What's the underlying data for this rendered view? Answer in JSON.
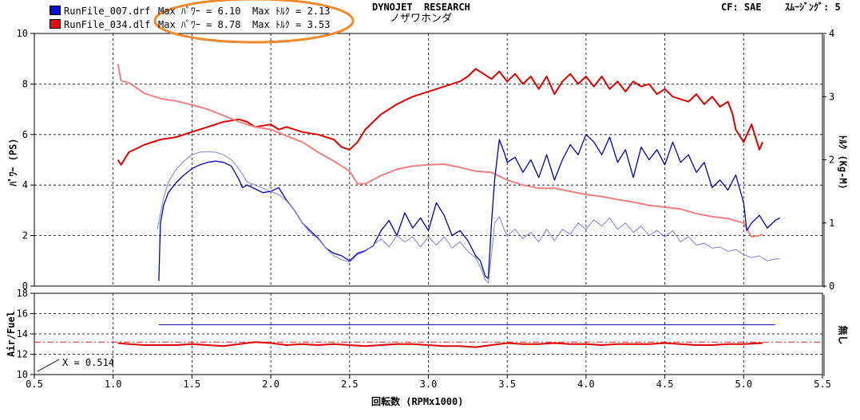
{
  "header": {
    "title": "DYNOJET  RESEARCH",
    "subtitle": "ノザワホンダ",
    "cf": "CF: SAE",
    "smoothing": "ｽﾑｰｼﾞﾝｸﾞ: 5"
  },
  "legend": [
    {
      "file": "RunFile_007.drf",
      "power_label": "Max ﾊﾟﾜｰ = 6.10",
      "torque_label": "Max ﾄﾙｸ = 2.13",
      "color": "#1010c8"
    },
    {
      "file": "RunFile_034.dlf",
      "power_label": "Max ﾊﾟﾜｰ = 8.78",
      "torque_label": "Max ﾄﾙｸ = 3.53",
      "color": "#e01010"
    }
  ],
  "annotation": {
    "highlight_color": "#f08a2c"
  },
  "cursor_readout": "X = 0.514",
  "chart_data": [
    {
      "type": "line",
      "name": "main",
      "xlabel": "回転数 (RPMx1000)",
      "ylabel_left": "ﾊﾟﾜｰ (PS)",
      "ylabel_right": "ﾄﾙｸ (Kg-M)",
      "xlim": [
        0.5,
        5.5
      ],
      "ylim_left": [
        0,
        10
      ],
      "ylim_right": [
        0,
        4
      ],
      "x_ticks": [
        "0.5",
        "1.0",
        "1.5",
        "2.0",
        "2.5",
        "3.0",
        "3.5",
        "4.0",
        "4.5",
        "5.0",
        "5.5"
      ],
      "y_ticks_left": [
        "0",
        "2",
        "4",
        "6",
        "8",
        "10"
      ],
      "y_ticks_right": [
        "0",
        "1",
        "2",
        "3",
        "4"
      ],
      "grid": true,
      "series": [
        {
          "file": "RunFile_034.dlf",
          "quantity": "power",
          "axis": "left",
          "color": "#dd0000",
          "width": 2,
          "x": [
            1.03,
            1.05,
            1.1,
            1.2,
            1.3,
            1.4,
            1.5,
            1.6,
            1.7,
            1.8,
            1.85,
            1.9,
            2.0,
            2.05,
            2.1,
            2.2,
            2.3,
            2.4,
            2.45,
            2.5,
            2.55,
            2.6,
            2.7,
            2.8,
            2.9,
            3.0,
            3.1,
            3.2,
            3.25,
            3.3,
            3.35,
            3.4,
            3.45,
            3.5,
            3.55,
            3.6,
            3.65,
            3.7,
            3.75,
            3.8,
            3.85,
            3.9,
            3.95,
            4.0,
            4.05,
            4.1,
            4.15,
            4.2,
            4.25,
            4.3,
            4.35,
            4.4,
            4.45,
            4.5,
            4.55,
            4.6,
            4.65,
            4.7,
            4.75,
            4.8,
            4.85,
            4.9,
            4.93,
            4.95,
            5.0,
            5.05,
            5.1,
            5.12
          ],
          "y": [
            5.0,
            4.8,
            5.3,
            5.6,
            5.8,
            5.9,
            6.1,
            6.3,
            6.5,
            6.6,
            6.5,
            6.3,
            6.4,
            6.2,
            6.3,
            6.1,
            6.0,
            5.8,
            5.5,
            5.4,
            5.7,
            6.2,
            6.8,
            7.2,
            7.5,
            7.7,
            7.9,
            8.1,
            8.3,
            8.6,
            8.4,
            8.2,
            8.5,
            8.1,
            8.4,
            8.0,
            8.3,
            7.8,
            8.3,
            7.6,
            8.1,
            8.4,
            8.0,
            8.3,
            7.9,
            8.3,
            7.8,
            8.1,
            7.7,
            8.1,
            7.9,
            8.0,
            7.6,
            7.8,
            7.5,
            7.4,
            7.3,
            7.6,
            7.2,
            7.5,
            7.1,
            7.3,
            6.8,
            6.2,
            5.7,
            6.4,
            5.4,
            5.7
          ]
        },
        {
          "file": "RunFile_034.dlf",
          "quantity": "torque",
          "axis": "right",
          "color": "#f08080",
          "width": 2,
          "x": [
            1.03,
            1.05,
            1.1,
            1.2,
            1.3,
            1.4,
            1.5,
            1.6,
            1.7,
            1.8,
            1.9,
            2.0,
            2.1,
            2.2,
            2.3,
            2.4,
            2.5,
            2.55,
            2.6,
            2.7,
            2.8,
            2.9,
            3.0,
            3.1,
            3.2,
            3.3,
            3.4,
            3.5,
            3.6,
            3.7,
            3.8,
            3.9,
            4.0,
            4.1,
            4.2,
            4.3,
            4.4,
            4.5,
            4.6,
            4.7,
            4.8,
            4.9,
            5.0,
            5.05,
            5.1,
            5.12
          ],
          "y": [
            3.52,
            3.25,
            3.22,
            3.05,
            2.97,
            2.93,
            2.87,
            2.8,
            2.7,
            2.6,
            2.52,
            2.48,
            2.38,
            2.28,
            2.12,
            1.98,
            1.82,
            1.62,
            1.62,
            1.75,
            1.85,
            1.9,
            1.92,
            1.93,
            1.88,
            1.82,
            1.8,
            1.68,
            1.6,
            1.55,
            1.55,
            1.5,
            1.45,
            1.42,
            1.37,
            1.33,
            1.28,
            1.25,
            1.22,
            1.15,
            1.1,
            1.07,
            1.0,
            0.78,
            0.8,
            0.82
          ]
        },
        {
          "file": "RunFile_007.drf",
          "quantity": "power",
          "axis": "left",
          "color": "#0000b0",
          "width": 1.3,
          "x": [
            1.29,
            1.3,
            1.32,
            1.35,
            1.4,
            1.45,
            1.5,
            1.55,
            1.6,
            1.65,
            1.7,
            1.75,
            1.8,
            1.82,
            1.85,
            1.9,
            1.95,
            2.0,
            2.05,
            2.1,
            2.15,
            2.2,
            2.25,
            2.3,
            2.35,
            2.4,
            2.45,
            2.5,
            2.55,
            2.6,
            2.65,
            2.7,
            2.75,
            2.8,
            2.85,
            2.9,
            2.95,
            3.0,
            3.05,
            3.1,
            3.15,
            3.2,
            3.25,
            3.3,
            3.33,
            3.36,
            3.38,
            3.4,
            3.42,
            3.45,
            3.48,
            3.5,
            3.55,
            3.6,
            3.65,
            3.7,
            3.75,
            3.8,
            3.85,
            3.9,
            3.95,
            4.0,
            4.05,
            4.1,
            4.15,
            4.2,
            4.25,
            4.3,
            4.35,
            4.4,
            4.45,
            4.5,
            4.55,
            4.6,
            4.65,
            4.7,
            4.75,
            4.8,
            4.85,
            4.9,
            4.95,
            5.0,
            5.02,
            5.05,
            5.1,
            5.15,
            5.2,
            5.23
          ],
          "y": [
            0.2,
            2.5,
            3.2,
            3.7,
            4.1,
            4.4,
            4.65,
            4.8,
            4.9,
            4.95,
            4.9,
            4.75,
            4.2,
            3.9,
            4.0,
            3.85,
            3.7,
            3.75,
            3.9,
            3.4,
            3.0,
            2.5,
            2.2,
            1.9,
            1.5,
            1.3,
            1.2,
            1.0,
            1.3,
            1.4,
            1.6,
            2.2,
            2.6,
            2.0,
            2.9,
            2.3,
            2.7,
            2.2,
            3.3,
            2.8,
            2.0,
            2.2,
            1.8,
            1.2,
            1.0,
            0.4,
            0.3,
            2.5,
            4.2,
            5.8,
            5.3,
            4.9,
            5.1,
            4.5,
            5.0,
            4.3,
            5.2,
            4.2,
            5.0,
            5.6,
            5.2,
            6.0,
            5.7,
            5.2,
            5.9,
            4.9,
            5.4,
            4.3,
            5.5,
            5.0,
            5.4,
            4.8,
            5.7,
            4.9,
            5.2,
            4.5,
            4.9,
            3.9,
            4.2,
            3.8,
            4.4,
            3.3,
            2.2,
            2.5,
            2.8,
            2.3,
            2.6,
            2.7
          ]
        },
        {
          "file": "RunFile_007.drf",
          "quantity": "torque",
          "axis": "right",
          "color": "#8080e0",
          "width": 1,
          "x": [
            1.28,
            1.3,
            1.32,
            1.35,
            1.4,
            1.45,
            1.5,
            1.55,
            1.6,
            1.65,
            1.7,
            1.75,
            1.8,
            1.85,
            1.9,
            1.95,
            2.0,
            2.05,
            2.1,
            2.15,
            2.2,
            2.25,
            2.3,
            2.35,
            2.4,
            2.45,
            2.5,
            2.55,
            2.6,
            2.65,
            2.7,
            2.75,
            2.8,
            2.85,
            2.9,
            2.95,
            3.0,
            3.05,
            3.1,
            3.15,
            3.2,
            3.25,
            3.3,
            3.33,
            3.36,
            3.38,
            3.4,
            3.42,
            3.45,
            3.48,
            3.5,
            3.55,
            3.6,
            3.65,
            3.7,
            3.75,
            3.8,
            3.85,
            3.9,
            3.95,
            4.0,
            4.05,
            4.1,
            4.15,
            4.2,
            4.25,
            4.3,
            4.35,
            4.4,
            4.45,
            4.5,
            4.55,
            4.6,
            4.65,
            4.7,
            4.75,
            4.8,
            4.85,
            4.9,
            4.95,
            5.0,
            5.05,
            5.1,
            5.15,
            5.2,
            5.23
          ],
          "y": [
            0.9,
            1.15,
            1.4,
            1.65,
            1.85,
            1.98,
            2.08,
            2.12,
            2.13,
            2.12,
            2.08,
            2.0,
            1.85,
            1.65,
            1.6,
            1.55,
            1.5,
            1.45,
            1.35,
            1.2,
            1.0,
            0.85,
            0.75,
            0.6,
            0.48,
            0.42,
            0.38,
            0.5,
            0.55,
            0.65,
            0.75,
            0.62,
            0.8,
            0.7,
            0.78,
            0.62,
            0.78,
            0.65,
            0.78,
            0.6,
            0.7,
            0.55,
            0.45,
            0.3,
            0.1,
            0.05,
            0.5,
            1.0,
            1.1,
            0.9,
            0.8,
            0.9,
            0.75,
            0.85,
            0.7,
            0.9,
            0.72,
            0.9,
            0.82,
            1.0,
            0.9,
            1.05,
            0.95,
            1.08,
            0.9,
            1.0,
            0.85,
            0.95,
            0.8,
            0.88,
            0.78,
            0.88,
            0.7,
            0.78,
            0.65,
            0.68,
            0.6,
            0.62,
            0.55,
            0.58,
            0.5,
            0.45,
            0.48,
            0.4,
            0.43,
            0.43
          ]
        }
      ]
    },
    {
      "type": "line",
      "name": "air_fuel",
      "ylabel_left": "Air/Fuel",
      "ylabel_right": "無し",
      "xlim": [
        0.5,
        5.5
      ],
      "ylim_left": [
        10,
        18
      ],
      "y_ticks_left": [
        "10",
        "12",
        "14",
        "16",
        "18"
      ],
      "reference_line": {
        "y": 13.2,
        "color": "#e02020",
        "style": "dash-dot"
      },
      "series": [
        {
          "file": "RunFile_007.drf",
          "color": "#1010b0",
          "width": 1,
          "x": [
            1.29,
            4.95,
            5.0,
            5.2
          ],
          "y": [
            14.9,
            14.9,
            14.9,
            14.9
          ]
        },
        {
          "file": "RunFile_034.dlf",
          "color": "#dd0000",
          "width": 2,
          "x": [
            1.03,
            1.1,
            1.2,
            1.3,
            1.4,
            1.5,
            1.6,
            1.7,
            1.8,
            1.9,
            2.0,
            2.1,
            2.2,
            2.3,
            2.4,
            2.5,
            2.6,
            2.7,
            2.8,
            2.9,
            3.0,
            3.1,
            3.2,
            3.3,
            3.4,
            3.5,
            3.6,
            3.7,
            3.8,
            3.9,
            4.0,
            4.1,
            4.2,
            4.3,
            4.4,
            4.5,
            4.6,
            4.7,
            4.8,
            4.9,
            5.0,
            5.12
          ],
          "y": [
            13.1,
            13.0,
            12.9,
            12.9,
            12.9,
            13.0,
            12.9,
            12.8,
            13.0,
            13.2,
            13.1,
            12.9,
            13.0,
            12.9,
            13.0,
            12.9,
            12.8,
            12.9,
            13.0,
            13.0,
            12.9,
            12.8,
            12.8,
            12.7,
            12.9,
            13.1,
            13.0,
            13.0,
            13.1,
            13.0,
            13.0,
            12.9,
            13.0,
            13.0,
            13.0,
            13.1,
            13.0,
            12.9,
            12.9,
            13.0,
            13.0,
            13.1
          ]
        }
      ]
    }
  ]
}
